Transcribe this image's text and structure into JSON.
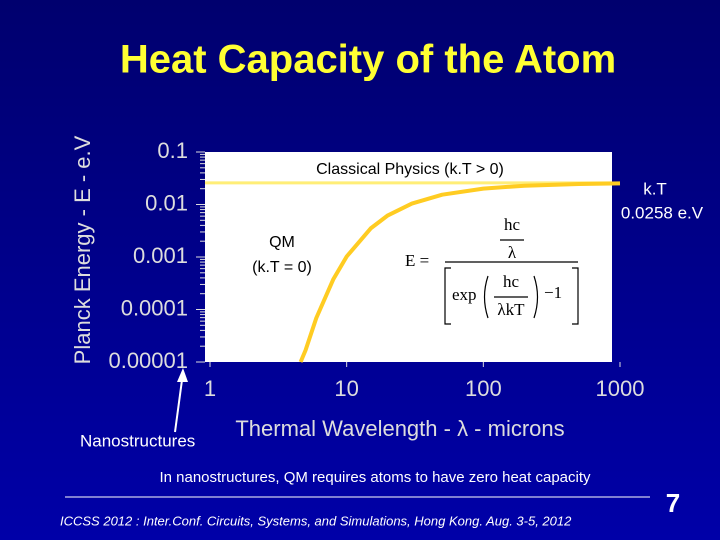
{
  "chart_data": {
    "type": "line",
    "title": "Heat Capacity of the Atom",
    "y_label": "Planck Energy - E - e.V",
    "x_label": "Thermal Wavelength - λ - microns",
    "log_x": true,
    "log_y": true,
    "xlim": [
      1,
      1000
    ],
    "ylim": [
      1e-05,
      0.1
    ],
    "xticks": [
      1,
      10,
      100,
      1000
    ],
    "yticks": [
      0.1,
      0.01,
      0.001,
      0.0001,
      1e-05
    ],
    "series": [
      {
        "color": "#ffcc22",
        "x": [
          4.6,
          5,
          6,
          8,
          10,
          15,
          20,
          30,
          50,
          100,
          200,
          500,
          1000
        ],
        "values": [
          1e-05,
          1.66e-05,
          6.9e-05,
          0.00038,
          0.00102,
          0.0035,
          0.0062,
          0.0104,
          0.0154,
          0.0201,
          0.0228,
          0.0246,
          0.0252
        ]
      }
    ],
    "reference_line": {
      "value": 0.0258,
      "color": "#ffee77"
    },
    "annotations": {
      "classical": "Classical Physics  (k.T > 0)",
      "qm": "QM",
      "qm_cond": "(k.T = 0)",
      "kt_1": "k.T",
      "kt_2": "0.0258 e.V",
      "nano": "Nanostructures"
    },
    "equation": {
      "lhs": "E =",
      "top": "hc",
      "bottom": "λ",
      "exp": "exp",
      "inner_top": "hc",
      "inner_bottom": "λkT",
      "minus": "−1"
    },
    "caption": "In nanostructures, QM requires atoms to have zero heat capacity",
    "footer": "ICCSS 2012 : Inter.Conf. Circuits, Systems, and Simulations, Hong Kong. Aug. 3-5, 2012",
    "page_number": "7"
  }
}
